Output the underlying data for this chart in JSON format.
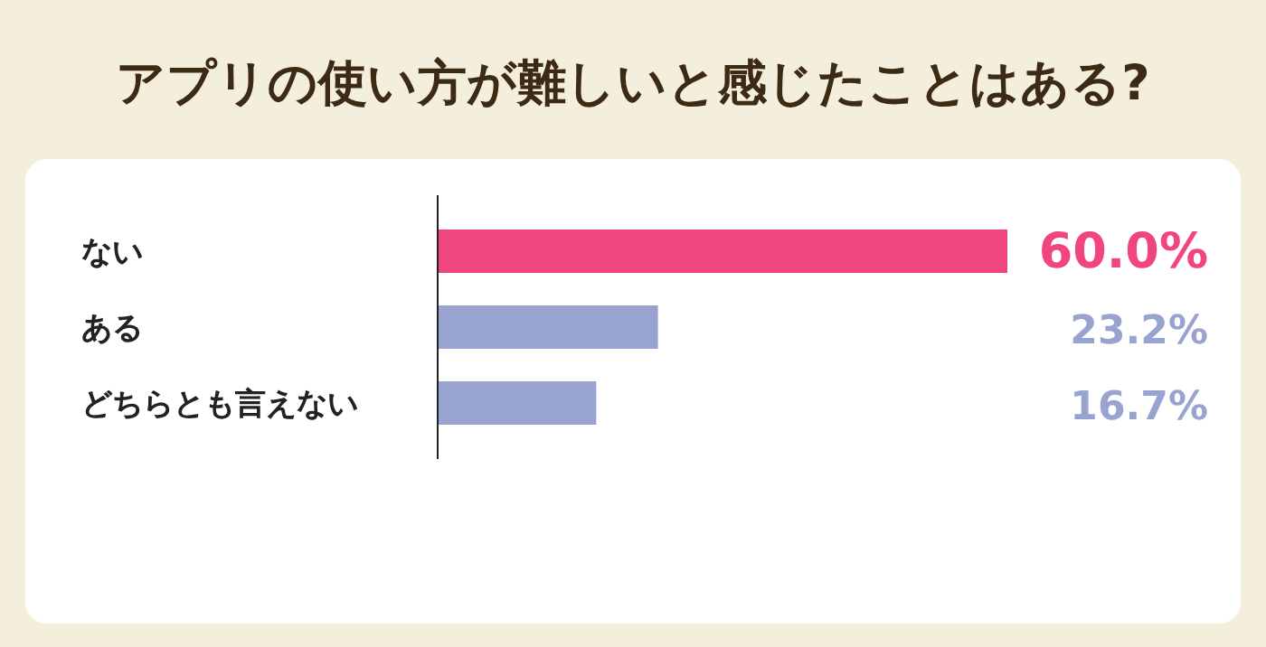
{
  "chart_data": {
    "type": "bar",
    "orientation": "horizontal",
    "title": "アプリの使い方が難しいと感じたことはある?",
    "categories": [
      "ない",
      "ある",
      "どちらとも言えない"
    ],
    "values": [
      60.0,
      23.2,
      16.7
    ],
    "colors": [
      "#f0457f",
      "#98a3cf",
      "#98a3cf"
    ],
    "value_labels": [
      "60.0%",
      "23.2%",
      "16.7%"
    ]
  }
}
